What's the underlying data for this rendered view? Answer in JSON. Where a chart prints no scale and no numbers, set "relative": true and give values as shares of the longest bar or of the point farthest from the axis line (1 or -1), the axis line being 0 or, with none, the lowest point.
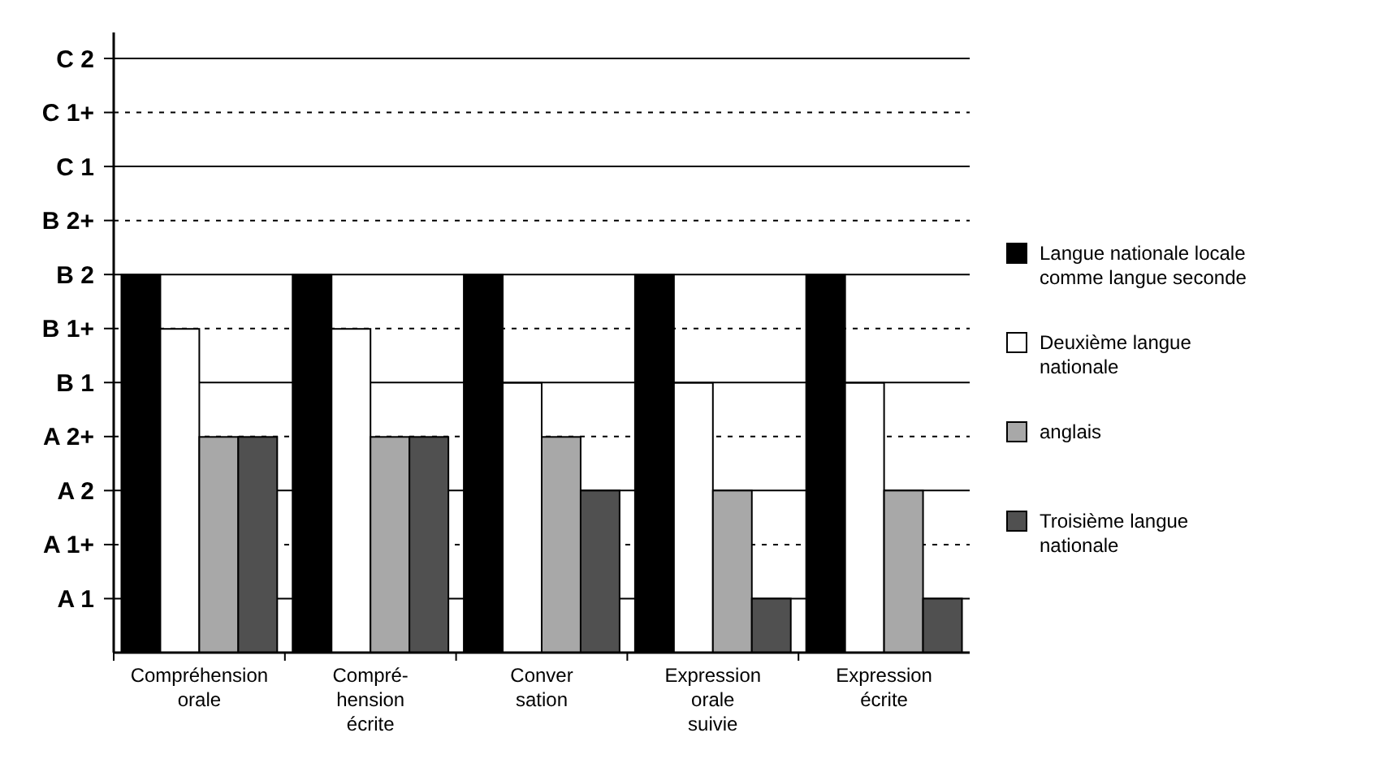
{
  "chart_data": {
    "type": "bar",
    "categories": [
      "Compréhension\norale",
      "Compré-\nhension\nécrite",
      "Conver\nsation",
      "Expression\norale\nsuivie",
      "Expression\nécrite"
    ],
    "series": [
      {
        "name": "Langue nationale locale\ncomme langue seconde",
        "color": "#000000",
        "values": [
          1,
          1,
          1,
          1,
          1
        ]
      },
      {
        "name": "Deuxième langue\nnationale",
        "color": "#ffffff",
        "values": [
          0.857,
          0.857,
          0.714,
          0.714,
          0.714
        ]
      },
      {
        "name": "anglais",
        "color": "#a8a8a8",
        "values": [
          0.571,
          0.571,
          0.571,
          0.429,
          0.429
        ]
      },
      {
        "name": "Troisième langue\nnationale",
        "color": "#505050",
        "values": [
          0.571,
          0.571,
          0.429,
          0.143,
          0.143
        ]
      }
    ],
    "relative": true,
    "annotations": [
      "A 1",
      "A 1+",
      "A 2",
      "A 2+",
      "B 1",
      "B 1+",
      "B 2",
      "B 2+",
      "C 1",
      "C 1+",
      "C 2"
    ],
    "grid": "y",
    "legend": "right"
  }
}
